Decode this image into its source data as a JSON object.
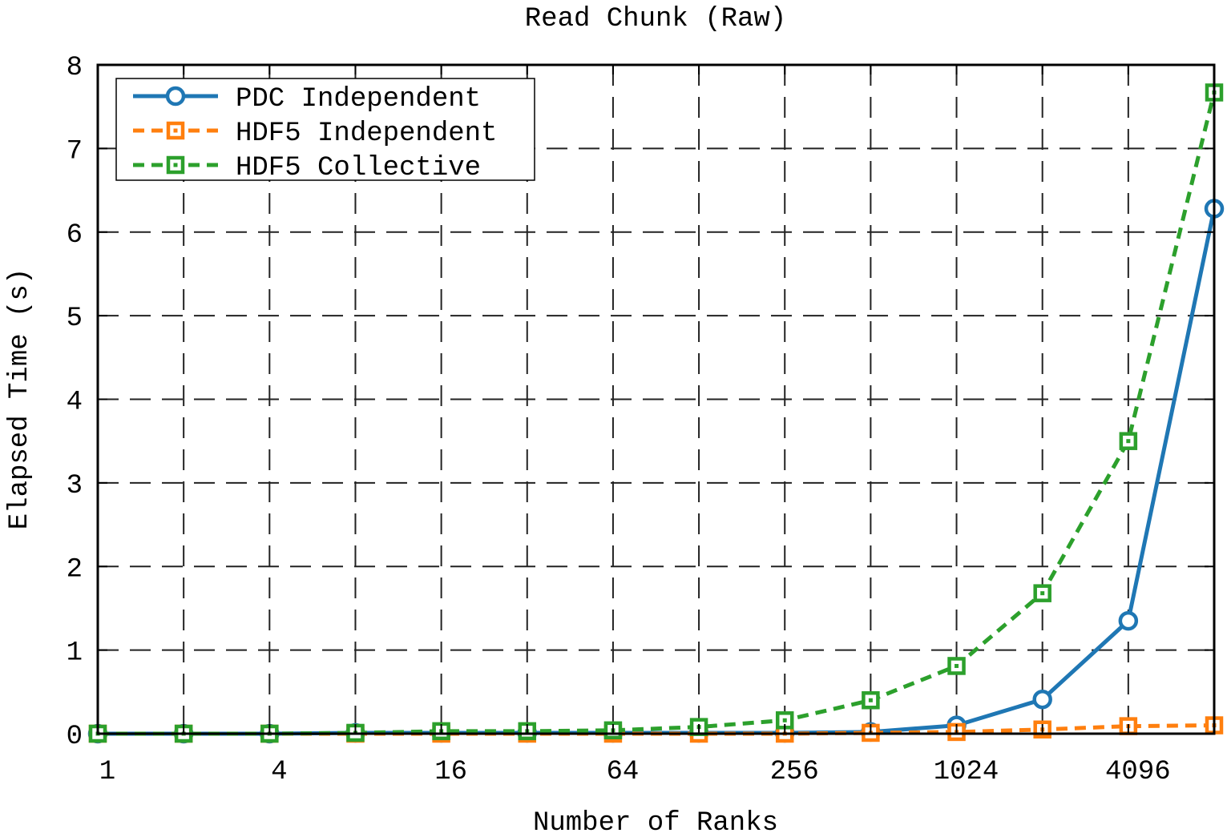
{
  "chart_data": {
    "type": "line",
    "title": "Read Chunk (Raw)",
    "xlabel": "Number of Ranks",
    "ylabel": "Elapsed Time (s)",
    "x_scale": "log2",
    "x_ticks": [
      1,
      4,
      16,
      64,
      256,
      1024,
      4096
    ],
    "x_tick_labels": [
      "1",
      "4",
      "16",
      "64",
      "256",
      "1024",
      "4096"
    ],
    "x": [
      1,
      2,
      4,
      8,
      16,
      32,
      64,
      128,
      256,
      512,
      1024,
      2048,
      4096,
      8192
    ],
    "xlim": [
      1,
      8192
    ],
    "ylim": [
      0,
      8
    ],
    "y_ticks": [
      0,
      1,
      2,
      3,
      4,
      5,
      6,
      7,
      8
    ],
    "y_tick_labels": [
      "0",
      "1",
      "2",
      "3",
      "4",
      "5",
      "6",
      "7",
      "8"
    ],
    "grid": true,
    "legend_position": "top-left",
    "series": [
      {
        "name": "PDC Independent",
        "color": "#1f77b4",
        "marker": "circle",
        "line": "solid",
        "values": [
          0.0,
          0.0,
          0.0,
          0.01,
          0.01,
          0.01,
          0.01,
          0.01,
          0.01,
          0.02,
          0.1,
          0.41,
          1.35,
          6.28
        ]
      },
      {
        "name": "HDF5 Independent",
        "color": "#ff7f0e",
        "marker": "square",
        "line": "dashed",
        "values": [
          0.0,
          0.0,
          0.0,
          0.0,
          0.0,
          0.0,
          0.0,
          0.0,
          0.0,
          0.01,
          0.02,
          0.05,
          0.09,
          0.1
        ]
      },
      {
        "name": "HDF5 Collective",
        "color": "#2ca02c",
        "marker": "square",
        "line": "dashed",
        "values": [
          0.0,
          0.0,
          0.0,
          0.01,
          0.03,
          0.03,
          0.04,
          0.08,
          0.16,
          0.4,
          0.81,
          1.68,
          3.5,
          7.67
        ]
      }
    ]
  }
}
